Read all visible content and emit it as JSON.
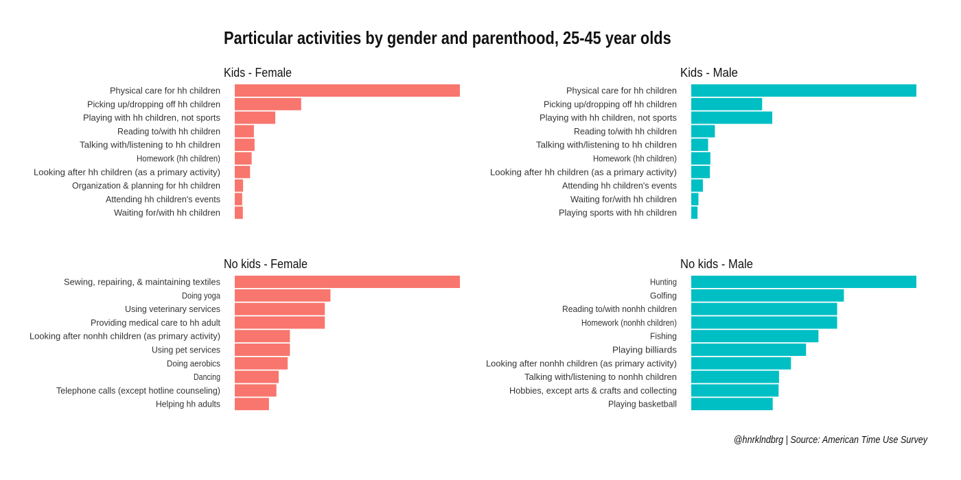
{
  "title": "Particular activities by gender and parenthood, 25-45 year olds",
  "caption": "@hnrklndbrg | Source: American Time Use Survey",
  "colors": {
    "female": "#F8766D",
    "male": "#00BFC4"
  },
  "chart_data": [
    {
      "type": "bar",
      "orientation": "horizontal",
      "title": "Kids - Female",
      "color": "#F8766D",
      "categories": [
        "Physical care for hh children",
        "Picking up/dropping off hh children",
        "Playing with hh children, not sports",
        "Reading to/with hh children",
        "Talking with/listening to hh children",
        "Homework (hh children)",
        "Looking after hh children (as a primary activity)",
        "Organization & planning for hh children",
        "Attending hh children's events",
        "Waiting for/with hh children"
      ],
      "values": [
        1.0,
        0.295,
        0.18,
        0.085,
        0.088,
        0.075,
        0.068,
        0.037,
        0.033,
        0.036
      ],
      "value_scale": "relative to largest bar in panel (no axis printed)"
    },
    {
      "type": "bar",
      "orientation": "horizontal",
      "title": "Kids - Male",
      "color": "#00BFC4",
      "categories": [
        "Physical care for hh children",
        "Picking up/dropping off hh children",
        "Playing with hh children, not sports",
        "Reading to/with hh children",
        "Talking with/listening to hh children",
        "Homework (hh children)",
        "Looking after hh children (as a primary activity)",
        "Attending hh children's events",
        "Waiting for/with hh children",
        "Playing sports with hh children"
      ],
      "values": [
        1.0,
        0.315,
        0.36,
        0.105,
        0.075,
        0.085,
        0.083,
        0.052,
        0.032,
        0.028
      ],
      "value_scale": "relative to largest bar in panel (no axis printed)"
    },
    {
      "type": "bar",
      "orientation": "horizontal",
      "title": "No kids - Female",
      "color": "#F8766D",
      "categories": [
        "Sewing, repairing, & maintaining textiles",
        "Doing yoga",
        "Using veterinary services",
        "Providing medical care to hh adult",
        "Looking after nonhh children (as primary activity)",
        "Using pet services",
        "Doing aerobics",
        "Dancing",
        "Telephone calls (except hotline counseling)",
        "Helping hh adults"
      ],
      "values": [
        1.0,
        0.425,
        0.4,
        0.4,
        0.245,
        0.245,
        0.235,
        0.195,
        0.185,
        0.152
      ],
      "value_scale": "relative to largest bar in panel (no axis printed)"
    },
    {
      "type": "bar",
      "orientation": "horizontal",
      "title": "No kids - Male",
      "color": "#00BFC4",
      "categories": [
        "Hunting",
        "Golfing",
        "Reading to/with nonhh children",
        "Homework (nonhh children)",
        "Fishing",
        "Playing billiards",
        "Looking after nonhh children (as primary activity)",
        "Talking with/listening to nonhh children",
        "Hobbies, except arts & crafts and collecting",
        "Playing basketball"
      ],
      "values": [
        1.0,
        0.678,
        0.648,
        0.648,
        0.565,
        0.51,
        0.443,
        0.39,
        0.388,
        0.362
      ],
      "value_scale": "relative to largest bar in panel (no axis printed)"
    }
  ]
}
